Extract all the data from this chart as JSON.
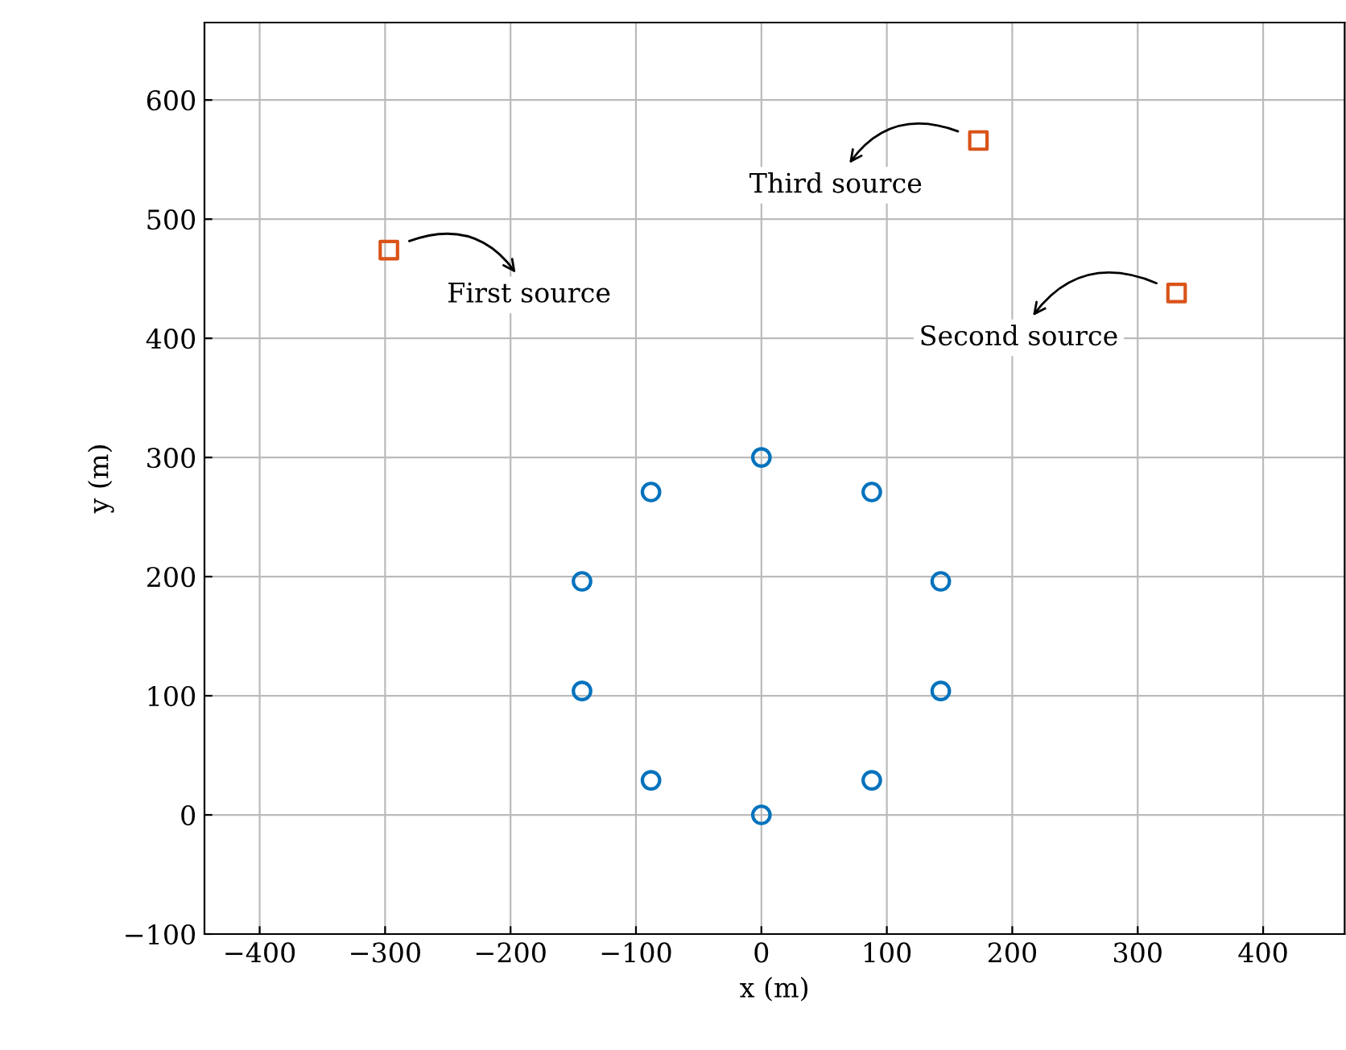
{
  "chart_data": {
    "type": "scatter",
    "xlabel": "x (m)",
    "ylabel": "y (m)",
    "series": [
      {
        "marker": "circle",
        "color": "#0072bd",
        "x": [
          0,
          88,
          143,
          143,
          88,
          0,
          -88,
          -143,
          -143,
          -88
        ],
        "values": [
          300,
          271,
          196,
          104,
          29,
          0,
          29,
          104,
          196,
          271
        ]
      },
      {
        "marker": "square",
        "color": "#d95319",
        "x": [
          -297,
          331,
          173
        ],
        "values": [
          474,
          438,
          566
        ]
      }
    ],
    "annotations": [
      {
        "text": "First source",
        "x": -297,
        "y": 474
      },
      {
        "text": "Second source",
        "x": 331,
        "y": 438
      },
      {
        "text": "Third source",
        "x": 173,
        "y": 566
      }
    ],
    "xlim": [
      -444,
      465
    ],
    "ylim": [
      -100,
      665
    ],
    "xticks": [
      {
        "value": -400,
        "label": "−400"
      },
      {
        "value": -300,
        "label": "−300"
      },
      {
        "value": -200,
        "label": "−200"
      },
      {
        "value": -100,
        "label": "−100"
      },
      0,
      100,
      200,
      300,
      400
    ],
    "yticks": [
      {
        "value": -100,
        "label": "−100"
      },
      0,
      100,
      200,
      300,
      400,
      500,
      600
    ],
    "grid": true
  }
}
